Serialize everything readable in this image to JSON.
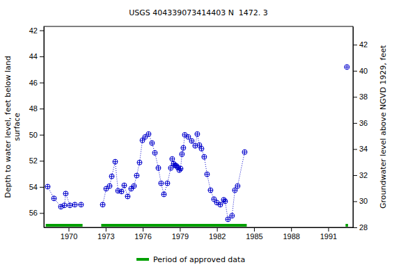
{
  "chart_data": {
    "type": "line",
    "title": "USGS 404339073414403 N  1472. 3",
    "y_label": "Depth to water level, feet below land\nsurface",
    "y2_label": "Groundwater level above NGVD 1929, feet",
    "xlim": [
      1968.0,
      1993.0
    ],
    "xticks": [
      1970,
      1973,
      1976,
      1979,
      1982,
      1985,
      1988,
      1991
    ],
    "ylim": [
      41.7,
      57.1
    ],
    "yticks": [
      42,
      44,
      46,
      48,
      50,
      52,
      54,
      56
    ],
    "y2lim": [
      43.4,
      28.0
    ],
    "y2ticks": [
      28,
      30,
      32,
      34,
      36,
      38,
      40,
      42
    ],
    "x": [
      1968.31,
      1968.82,
      1969.38,
      1969.66,
      1969.77,
      1970.11,
      1970.51,
      1971.01,
      1972.0,
      1972.76,
      1973.04,
      1973.32,
      1973.49,
      1973.77,
      1974.0,
      1974.28,
      1974.5,
      1974.78,
      1975.06,
      1975.29,
      1975.51,
      1975.74,
      1975.97,
      1976.19,
      1976.47,
      1976.75,
      1976.98,
      1977.26,
      1977.48,
      1977.71,
      1977.99,
      1978.27,
      1978.38,
      1978.5,
      1978.61,
      1978.72,
      1978.83,
      1978.95,
      1979.06,
      1979.17,
      1979.28,
      1979.4,
      1979.68,
      1979.96,
      1980.24,
      1980.41,
      1980.58,
      1980.75,
      1980.97,
      1981.2,
      1981.48,
      1981.76,
      1981.99,
      1982.27,
      1982.55,
      1982.66,
      1982.89,
      1983.22,
      1983.45,
      1983.67,
      1984.24,
      1988.0,
      1992.51
    ],
    "series": [
      {
        "color": "#0000cc",
        "marker": "circle",
        "line_style": "dotted",
        "values": [
          53.98,
          54.88,
          55.52,
          55.41,
          54.51,
          55.41,
          55.36,
          55.36,
          null,
          55.36,
          54.14,
          53.93,
          53.19,
          52.07,
          54.3,
          54.35,
          53.88,
          54.73,
          54.14,
          53.93,
          53.13,
          52.13,
          50.43,
          50.17,
          49.95,
          50.64,
          51.39,
          52.55,
          53.72,
          54.57,
          53.72,
          52.55,
          51.86,
          52.23,
          52.34,
          52.39,
          52.5,
          52.71,
          52.6,
          51.49,
          51.01,
          50.01,
          50.17,
          50.48,
          50.85,
          49.95,
          50.8,
          51.07,
          51.7,
          53.03,
          54.25,
          54.94,
          55.2,
          55.36,
          54.99,
          55.1,
          56.48,
          56.21,
          54.25,
          53.93,
          51.33,
          null,
          44.81
        ]
      }
    ],
    "approved_periods": {
      "name": "Period of approved data",
      "color": "#00a000",
      "ranges": [
        [
          1968.15,
          1971.13
        ],
        [
          1972.64,
          1984.41
        ],
        [
          1992.4,
          1992.6
        ]
      ]
    }
  }
}
